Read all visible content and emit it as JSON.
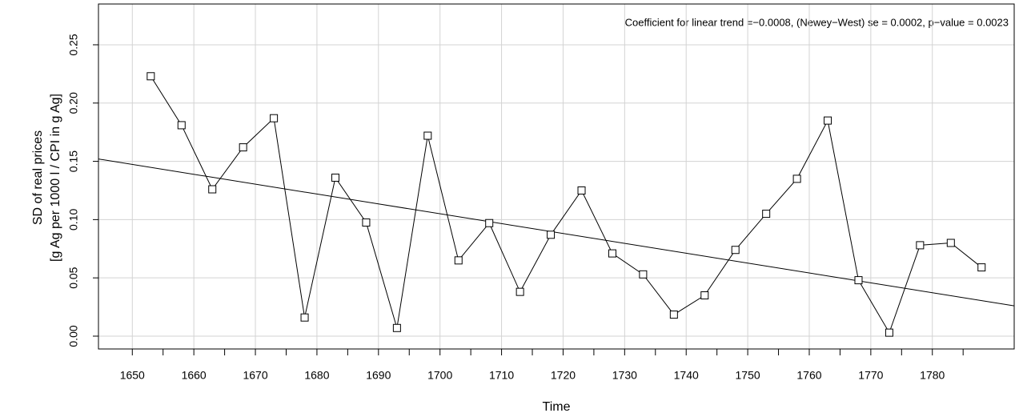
{
  "chart_data": {
    "type": "line",
    "annotation": "Coefficient for linear trend =−0.0008, (Newey−West) se = 0.0002, p−value = 0.0023",
    "x_label": "Time",
    "y_label": [
      "SD of real prices",
      "[g Ag per 1000 l / CPI in g Ag]"
    ],
    "x": [
      1653,
      1658,
      1663,
      1668,
      1673,
      1678,
      1683,
      1688,
      1693,
      1698,
      1703,
      1708,
      1713,
      1718,
      1723,
      1728,
      1733,
      1738,
      1743,
      1748,
      1753,
      1758,
      1763,
      1768,
      1773,
      1778,
      1783,
      1788
    ],
    "series": [
      {
        "color": "#000000",
        "values": [
          0.223,
          0.181,
          0.126,
          0.162,
          0.187,
          0.016,
          0.136,
          0.0975,
          0.007,
          0.172,
          0.065,
          0.097,
          0.038,
          0.087,
          0.125,
          0.071,
          0.053,
          0.0185,
          0.035,
          0.074,
          0.105,
          0.135,
          0.185,
          0.048,
          0.003,
          0.078,
          0.08,
          0.059
        ]
      }
    ],
    "trend": {
      "color": "#000000",
      "x": [
        1644.5,
        1793.3
      ],
      "values": [
        0.152,
        0.026
      ]
    },
    "xlim": [
      1644.5,
      1793.3
    ],
    "ylim": [
      -0.011,
      0.285
    ],
    "xticks": [
      1650,
      1660,
      1670,
      1680,
      1690,
      1700,
      1710,
      1720,
      1730,
      1740,
      1750,
      1760,
      1770,
      1780
    ],
    "xticks_minor": [
      1655,
      1665,
      1675,
      1685,
      1695,
      1705,
      1715,
      1725,
      1735,
      1745,
      1755,
      1765,
      1775,
      1785
    ],
    "yticks": [
      {
        "value": 0,
        "label": "0.00"
      },
      {
        "value": 0.05,
        "label": "0.05"
      },
      {
        "value": 0.1,
        "label": "0.10"
      },
      {
        "value": 0.15,
        "label": "0.15"
      },
      {
        "value": 0.2,
        "label": "0.20"
      },
      {
        "value": 0.25,
        "label": "0.25"
      }
    ],
    "grid": true
  }
}
